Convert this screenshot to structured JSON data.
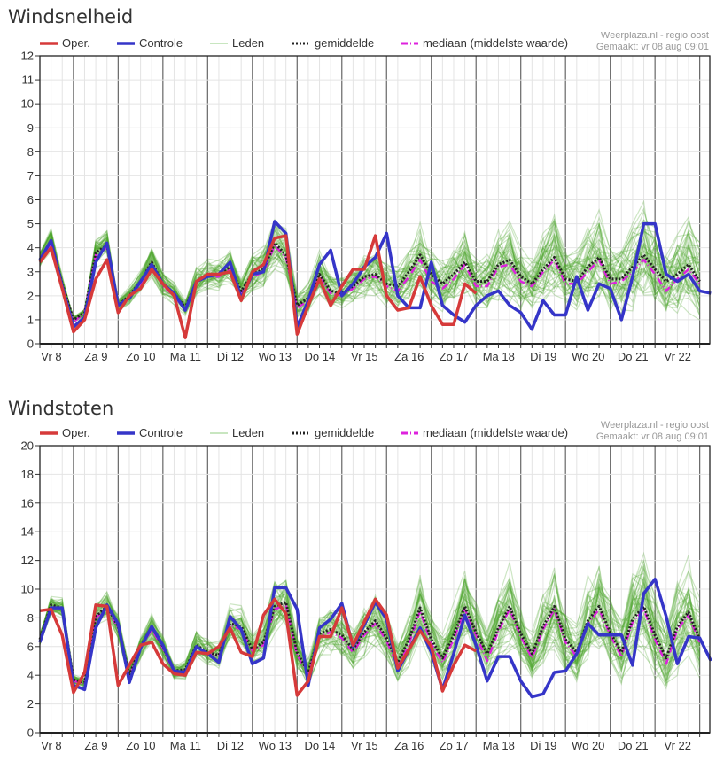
{
  "source_credit": "Weerplaza.nl - regio oost",
  "made_label": "Gemaakt: vr 08 aug 09:01",
  "legend": {
    "oper": "Oper.",
    "control": "Controle",
    "members": "Leden",
    "mean": "gemiddelde",
    "median": "mediaan (middelste waarde)"
  },
  "colors": {
    "oper": "#d63a3a",
    "control": "#3535c8",
    "members": "#4aa52a",
    "mean": "#222222",
    "median": "#dd22dd"
  },
  "chart_data": [
    {
      "type": "line",
      "title": "Windsnelheid",
      "xlabel": "",
      "ylabel": "",
      "ylim": [
        0,
        12
      ],
      "yticks": [
        0,
        1,
        2,
        3,
        4,
        5,
        6,
        7,
        8,
        9,
        10,
        11,
        12
      ],
      "x_day_labels": [
        "Vr 8",
        "Za 9",
        "Zo 10",
        "Ma 11",
        "Di 12",
        "Wo 13",
        "Do 14",
        "Vr 15",
        "Za 16",
        "Zo 17",
        "Ma 18",
        "Di 19",
        "Wo 20",
        "Do 21",
        "Vr 22"
      ],
      "steps_per_day": 4,
      "grid": true,
      "legend_position": "top",
      "series": [
        {
          "name": "Oper.",
          "key": "oper",
          "values": [
            3.4,
            4.0,
            2.3,
            0.5,
            1.0,
            2.7,
            3.5,
            1.3,
            2.0,
            2.3,
            3.1,
            2.5,
            2.0,
            0.25,
            2.6,
            2.9,
            2.9,
            3.0,
            1.8,
            3.0,
            3.3,
            4.4,
            4.5,
            0.4,
            1.6,
            2.7,
            1.6,
            2.4,
            3.1,
            3.1,
            4.5,
            2.0,
            1.4,
            1.5,
            2.8,
            1.6,
            0.8,
            0.8,
            2.5,
            2.1
          ]
        },
        {
          "name": "Controle",
          "key": "control",
          "values": [
            3.5,
            4.3,
            2.4,
            0.7,
            1.1,
            3.4,
            4.2,
            1.6,
            1.9,
            2.6,
            3.3,
            2.5,
            2.1,
            1.4,
            2.6,
            2.8,
            2.9,
            3.4,
            1.9,
            2.9,
            3.0,
            5.1,
            4.6,
            0.7,
            1.8,
            3.3,
            3.9,
            2.0,
            2.5,
            3.2,
            3.6,
            4.6,
            2.0,
            1.5,
            1.5,
            3.4,
            1.6,
            1.2,
            0.9,
            1.6,
            2.0,
            2.2,
            1.6,
            1.3,
            0.6,
            1.8,
            1.2,
            1.2,
            2.8,
            1.4,
            2.5,
            2.3,
            1.0,
            2.8,
            5.0,
            5.0,
            2.9,
            2.6,
            2.9,
            2.2,
            2.1
          ]
        },
        {
          "name": "gemiddelde",
          "key": "mean",
          "values": [
            3.5,
            4.3,
            2.5,
            1.0,
            1.3,
            3.8,
            4.1,
            1.6,
            2.0,
            2.6,
            3.4,
            2.5,
            2.1,
            1.5,
            2.6,
            2.9,
            2.9,
            3.2,
            2.2,
            2.9,
            3.1,
            4.2,
            3.7,
            1.6,
            1.9,
            2.9,
            2.2,
            2.1,
            2.4,
            2.8,
            2.9,
            2.5,
            2.4,
            3.0,
            3.7,
            2.9,
            2.5,
            2.9,
            3.4,
            2.6,
            2.6,
            3.3,
            3.5,
            2.8,
            2.5,
            3.1,
            3.6,
            2.7,
            2.6,
            3.2,
            3.6,
            2.7,
            2.7,
            3.2,
            3.7,
            3.1,
            2.6,
            2.9,
            3.3,
            2.6
          ]
        },
        {
          "name": "mediaan (middelste waarde)",
          "key": "median",
          "values": [
            3.4,
            4.2,
            2.4,
            0.9,
            1.3,
            3.7,
            4.0,
            1.6,
            1.9,
            2.5,
            3.3,
            2.4,
            2.0,
            1.4,
            2.6,
            2.8,
            2.8,
            3.1,
            2.1,
            2.8,
            3.0,
            4.1,
            3.6,
            1.5,
            1.8,
            2.8,
            2.1,
            2.0,
            2.3,
            2.7,
            2.8,
            2.4,
            2.2,
            2.8,
            3.5,
            2.6,
            2.3,
            2.7,
            3.3,
            2.4,
            2.4,
            3.2,
            3.3,
            2.6,
            2.4,
            3.0,
            3.5,
            2.5,
            2.5,
            3.0,
            3.5,
            2.5,
            2.6,
            3.0,
            3.5,
            2.9,
            2.2,
            2.7,
            3.1,
            2.5
          ]
        }
      ]
    },
    {
      "type": "line",
      "title": "Windstoten",
      "xlabel": "",
      "ylabel": "",
      "ylim": [
        0,
        20
      ],
      "yticks": [
        0,
        2,
        4,
        6,
        8,
        10,
        12,
        14,
        16,
        18,
        20
      ],
      "x_day_labels": [
        "Vr 8",
        "Za 9",
        "Zo 10",
        "Ma 11",
        "Di 12",
        "Wo 13",
        "Do 14",
        "Vr 15",
        "Za 16",
        "Zo 17",
        "Ma 18",
        "Di 19",
        "Wo 20",
        "Do 21",
        "Vr 22"
      ],
      "steps_per_day": 4,
      "grid": true,
      "legend_position": "top",
      "series": [
        {
          "name": "Oper.",
          "key": "oper",
          "values": [
            8.5,
            8.6,
            6.8,
            2.8,
            4.2,
            8.9,
            8.8,
            3.3,
            4.7,
            6.1,
            6.3,
            4.8,
            4.1,
            4.0,
            5.6,
            5.5,
            6.0,
            7.3,
            5.6,
            5.3,
            8.2,
            9.3,
            8.3,
            2.6,
            3.6,
            6.7,
            6.7,
            8.7,
            6.1,
            7.7,
            9.3,
            8.2,
            4.5,
            5.8,
            7.1,
            6.0,
            2.9,
            4.7,
            6.1,
            5.7
          ]
        },
        {
          "name": "Controle",
          "key": "control",
          "values": [
            6.3,
            8.7,
            8.7,
            3.3,
            3.0,
            7.3,
            8.9,
            7.6,
            3.5,
            5.9,
            7.4,
            6.1,
            4.3,
            4.2,
            6.0,
            5.5,
            4.9,
            8.1,
            7.2,
            4.8,
            5.2,
            10.1,
            10.1,
            8.6,
            3.3,
            7.3,
            7.9,
            9.0,
            6.0,
            7.5,
            9.1,
            7.9,
            4.3,
            5.8,
            7.3,
            5.6,
            3.0,
            5.5,
            8.2,
            6.1,
            3.6,
            5.3,
            5.3,
            3.6,
            2.5,
            2.7,
            4.2,
            4.3,
            5.5,
            7.6,
            6.8,
            6.8,
            6.8,
            4.7,
            9.7,
            10.7,
            8.1,
            4.8,
            6.7,
            6.6,
            5.0
          ]
        },
        {
          "name": "gemiddelde",
          "key": "mean",
          "values": [
            6.5,
            8.9,
            8.7,
            3.7,
            3.5,
            8.1,
            8.8,
            7.4,
            4.0,
            6.0,
            7.4,
            6.0,
            4.3,
            4.4,
            6.1,
            5.6,
            5.4,
            7.6,
            7.4,
            5.8,
            6.3,
            8.8,
            9.1,
            5.6,
            4.2,
            6.9,
            7.2,
            6.8,
            5.8,
            7.0,
            7.8,
            6.6,
            4.9,
            6.5,
            8.7,
            6.5,
            5.2,
            6.8,
            8.8,
            7.0,
            5.5,
            7.3,
            8.8,
            6.9,
            5.5,
            7.4,
            8.8,
            6.5,
            5.6,
            7.8,
            8.8,
            7.0,
            5.6,
            7.9,
            8.8,
            6.8,
            5.2,
            7.4,
            8.4,
            6.5
          ]
        },
        {
          "name": "mediaan (middelste waarde)",
          "key": "median",
          "values": [
            6.3,
            8.8,
            8.6,
            3.6,
            3.4,
            8.0,
            8.7,
            7.3,
            3.9,
            5.9,
            7.2,
            5.9,
            4.2,
            4.3,
            6.0,
            5.5,
            5.3,
            7.5,
            7.2,
            5.7,
            6.1,
            8.6,
            8.9,
            5.4,
            4.1,
            6.7,
            7.0,
            6.6,
            5.6,
            6.8,
            7.6,
            6.4,
            4.6,
            6.2,
            8.5,
            6.2,
            4.9,
            6.5,
            8.6,
            6.8,
            5.0,
            7.1,
            8.6,
            6.7,
            5.2,
            7.2,
            8.6,
            6.3,
            5.3,
            7.6,
            8.6,
            6.8,
            5.3,
            7.7,
            8.6,
            6.5,
            4.8,
            7.2,
            8.2,
            6.3
          ]
        }
      ]
    }
  ]
}
